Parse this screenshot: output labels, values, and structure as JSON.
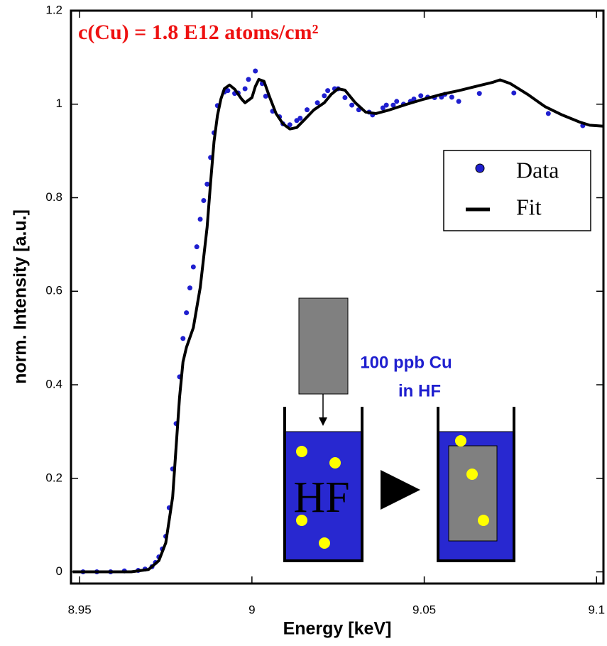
{
  "chart_data": {
    "type": "scatter+line",
    "title": "c(Cu) = 1.8 E12 atoms/cm²",
    "x_label": "Energy [keV]",
    "y_label": "norm. Intensity [a.u.]",
    "xlim": [
      8.9475,
      9.102
    ],
    "ylim": [
      -0.025,
      1.2
    ],
    "xticks": [
      8.95,
      9,
      9.05,
      9.1
    ],
    "yticks": [
      0,
      0.2,
      0.4,
      0.6,
      0.8,
      1,
      1.2
    ],
    "legend": "upper right",
    "series": [
      {
        "name": "Data",
        "type": "scatter",
        "color": "#1f1fcf",
        "x": [
          8.951,
          8.955,
          8.959,
          8.963,
          8.967,
          8.969,
          8.971,
          8.972,
          8.973,
          8.974,
          8.975,
          8.976,
          8.977,
          8.978,
          8.979,
          8.98,
          8.981,
          8.982,
          8.983,
          8.984,
          8.985,
          8.986,
          8.987,
          8.988,
          8.989,
          8.99,
          8.992,
          8.993,
          8.995,
          8.996,
          8.998,
          8.999,
          9.001,
          9.003,
          9.004,
          9.006,
          9.008,
          9.009,
          9.011,
          9.013,
          9.014,
          9.016,
          9.019,
          9.021,
          9.022,
          9.024,
          9.025,
          9.027,
          9.029,
          9.031,
          9.034,
          9.035,
          9.038,
          9.039,
          9.041,
          9.042,
          9.044,
          9.046,
          9.047,
          9.049,
          9.051,
          9.053,
          9.055,
          9.056,
          9.058,
          9.06,
          9.066,
          9.076,
          9.086,
          9.096
        ],
        "values": [
          0,
          0,
          0,
          0.002,
          0.003,
          0.006,
          0.011,
          0.02,
          0.032,
          0.049,
          0.076,
          0.137,
          0.22,
          0.317,
          0.417,
          0.499,
          0.554,
          0.607,
          0.652,
          0.695,
          0.754,
          0.794,
          0.829,
          0.886,
          0.939,
          0.997,
          1.026,
          1.029,
          1.023,
          1.024,
          1.033,
          1.053,
          1.071,
          1.044,
          1.017,
          0.985,
          0.973,
          0.958,
          0.956,
          0.965,
          0.97,
          0.988,
          1.003,
          1.018,
          1.029,
          1.033,
          1.033,
          1.014,
          0.998,
          0.988,
          0.983,
          0.977,
          0.992,
          0.998,
          0.998,
          1.006,
          1.0,
          1.006,
          1.011,
          1.018,
          1.015,
          1.014,
          1.015,
          1.021,
          1.015,
          1.006,
          1.023,
          1.024,
          0.98,
          0.954
        ]
      },
      {
        "name": "Fit",
        "type": "line",
        "color": "#000000",
        "x": [
          8.948,
          8.965,
          8.97,
          8.973,
          8.975,
          8.977,
          8.978,
          8.979,
          8.98,
          8.981,
          8.983,
          8.985,
          8.987,
          8.988,
          8.989,
          8.99,
          8.991,
          8.992,
          8.9935,
          8.995,
          8.997,
          8.998,
          9.0,
          9.001,
          9.002,
          9.0035,
          9.005,
          9.007,
          9.009,
          9.011,
          9.013,
          9.015,
          9.018,
          9.021,
          9.023,
          9.025,
          9.027,
          9.03,
          9.033,
          9.036,
          9.04,
          9.045,
          9.05,
          9.055,
          9.06,
          9.065,
          9.07,
          9.072,
          9.075,
          9.08,
          9.085,
          9.09,
          9.095,
          9.098,
          9.102
        ],
        "values": [
          0,
          0,
          0.005,
          0.024,
          0.062,
          0.16,
          0.267,
          0.373,
          0.449,
          0.48,
          0.522,
          0.608,
          0.737,
          0.832,
          0.92,
          0.976,
          1.011,
          1.033,
          1.041,
          1.032,
          1.011,
          1.003,
          1.014,
          1.038,
          1.053,
          1.049,
          1.018,
          0.98,
          0.958,
          0.947,
          0.95,
          0.965,
          0.988,
          1.003,
          1.021,
          1.033,
          1.03,
          1.003,
          0.983,
          0.98,
          0.988,
          1.0,
          1.011,
          1.021,
          1.029,
          1.038,
          1.047,
          1.052,
          1.044,
          1.021,
          0.995,
          0.977,
          0.962,
          0.955,
          0.953
        ]
      }
    ],
    "annotations": [
      "100 ppb Cu",
      "in HF",
      "HF"
    ]
  }
}
